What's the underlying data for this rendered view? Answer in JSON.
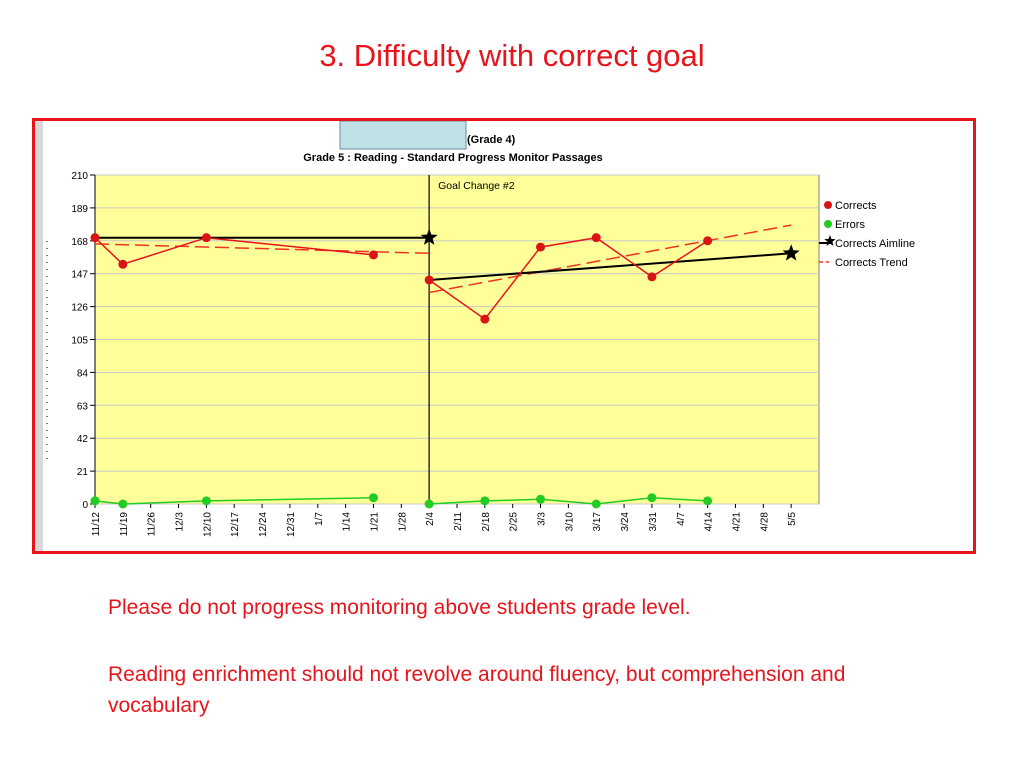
{
  "slide": {
    "title": "3.  Difficulty with correct goal",
    "notes": [
      "Please do not progress monitoring above students grade level.",
      "Reading enrichment should not revolve around fluency, but comprehension and vocabulary"
    ]
  },
  "chart_data": {
    "type": "line",
    "header_partial": "(Grade 4)",
    "title": "Grade 5 : Reading - Standard Progress Monitor Passages",
    "ylim": [
      0,
      210
    ],
    "yticks": [
      0,
      21,
      42,
      63,
      84,
      105,
      126,
      147,
      168,
      189,
      210
    ],
    "x_labels": [
      "11/12",
      "11/19",
      "11/26",
      "12/3",
      "12/10",
      "12/17",
      "12/24",
      "12/31",
      "1/7",
      "1/14",
      "1/21",
      "1/28",
      "2/4",
      "2/11",
      "2/18",
      "2/25",
      "3/3",
      "3/10",
      "3/17",
      "3/24",
      "3/31",
      "4/7",
      "4/14",
      "4/21",
      "4/28",
      "5/5"
    ],
    "grid": true,
    "legend_position": "right",
    "annotation": "Goal Change #2",
    "goal_change_index": 12,
    "series": [
      {
        "name": "Corrects",
        "color": "#e8141c",
        "segments": [
          [
            [
              0,
              170
            ],
            [
              1,
              153
            ],
            [
              4,
              170
            ],
            [
              10,
              159
            ]
          ],
          [
            [
              12,
              143
            ],
            [
              14,
              118
            ],
            [
              16,
              164
            ],
            [
              18,
              170
            ],
            [
              20,
              145
            ],
            [
              22,
              168
            ]
          ]
        ]
      },
      {
        "name": "Errors",
        "color": "#22cc22",
        "segments": [
          [
            [
              0,
              2
            ],
            [
              1,
              0
            ],
            [
              4,
              2
            ],
            [
              10,
              4
            ]
          ],
          [
            [
              12,
              0
            ],
            [
              14,
              2
            ],
            [
              16,
              3
            ],
            [
              18,
              0
            ],
            [
              20,
              4
            ],
            [
              22,
              2
            ]
          ]
        ]
      },
      {
        "name": "Corrects Aimline",
        "color": "#000000",
        "segments": [
          [
            [
              0,
              170
            ],
            [
              12,
              170
            ]
          ],
          [
            [
              12,
              143
            ],
            [
              25,
              160
            ]
          ]
        ],
        "star_points": [
          [
            12,
            170
          ],
          [
            25,
            160
          ]
        ]
      },
      {
        "name": "Corrects Trend",
        "color": "#e8141c",
        "style": "dashed",
        "segments": [
          [
            [
              0,
              166
            ],
            [
              12,
              160
            ]
          ],
          [
            [
              12,
              135
            ],
            [
              25,
              178
            ]
          ]
        ]
      }
    ]
  }
}
